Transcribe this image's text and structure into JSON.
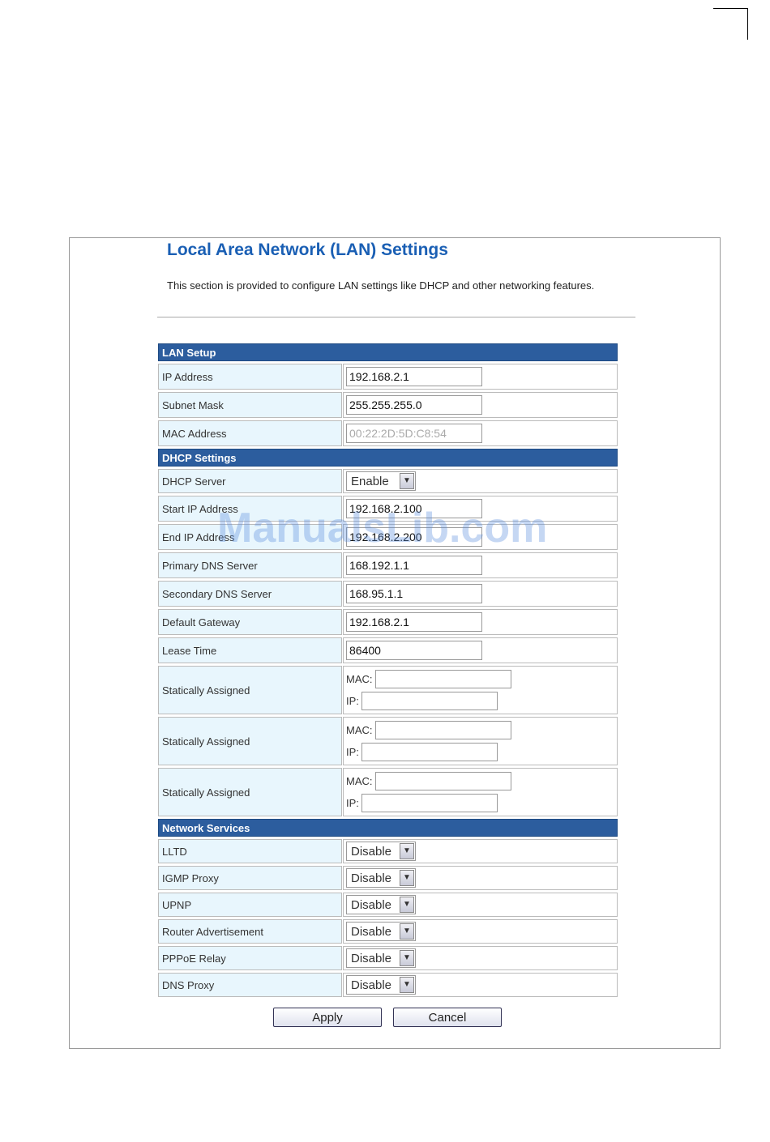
{
  "page": {
    "title": "Local Area Network (LAN) Settings",
    "description": "This section is provided to configure LAN settings like DHCP and other networking features."
  },
  "sections": [
    {
      "header": "LAN Setup",
      "rows": [
        {
          "label": "IP Address",
          "type": "text",
          "value": "192.168.2.1"
        },
        {
          "label": "Subnet Mask",
          "type": "text",
          "value": "255.255.255.0"
        },
        {
          "label": "MAC Address",
          "type": "text",
          "value": "00:22:2D:5D:C8:54",
          "disabled": true
        }
      ]
    },
    {
      "header": "DHCP Settings",
      "rows": [
        {
          "label": "DHCP Server",
          "type": "select",
          "value": "Enable"
        },
        {
          "label": "Start IP Address",
          "type": "text",
          "value": "192.168.2.100"
        },
        {
          "label": "End IP Address",
          "type": "text",
          "value": "192.168.2.200"
        },
        {
          "label": "Primary DNS Server",
          "type": "text",
          "value": "168.192.1.1"
        },
        {
          "label": "Secondary DNS Server",
          "type": "text",
          "value": "168.95.1.1"
        },
        {
          "label": "Default Gateway",
          "type": "text",
          "value": "192.168.2.1"
        },
        {
          "label": "Lease Time",
          "type": "text",
          "value": "86400"
        },
        {
          "label": "Statically Assigned",
          "type": "static",
          "mac_label": "MAC:",
          "ip_label": "IP:",
          "mac": "",
          "ip": ""
        },
        {
          "label": "Statically Assigned",
          "type": "static",
          "mac_label": "MAC:",
          "ip_label": "IP:",
          "mac": "",
          "ip": ""
        },
        {
          "label": "Statically Assigned",
          "type": "static",
          "mac_label": "MAC:",
          "ip_label": "IP:",
          "mac": "",
          "ip": ""
        }
      ]
    },
    {
      "header": "Network Services",
      "rows": [
        {
          "label": "LLTD",
          "type": "select",
          "value": "Disable"
        },
        {
          "label": "IGMP Proxy",
          "type": "select",
          "value": "Disable"
        },
        {
          "label": "UPNP",
          "type": "select",
          "value": "Disable"
        },
        {
          "label": "Router Advertisement",
          "type": "select",
          "value": "Disable"
        },
        {
          "label": "PPPoE Relay",
          "type": "select",
          "value": "Disable"
        },
        {
          "label": "DNS Proxy",
          "type": "select",
          "value": "Disable"
        }
      ]
    }
  ],
  "buttons": {
    "apply": "Apply",
    "cancel": "Cancel"
  },
  "watermark": "ManualsLib.com",
  "colors": {
    "title": "#1a5fb4",
    "section_header": "#2c5d9e",
    "label_bg": "#e8f6fd"
  },
  "icons": {
    "select_arrow": "chevron-down-icon"
  }
}
